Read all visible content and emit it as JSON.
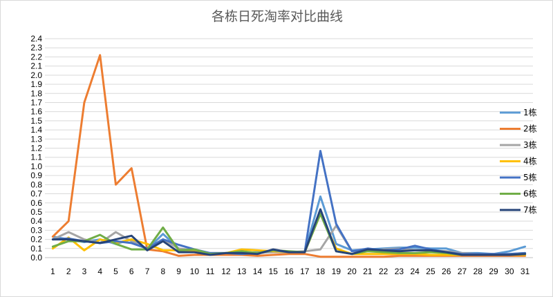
{
  "chart_data": {
    "type": "line",
    "title": "各栋日死淘率对比曲线",
    "xlabel": "",
    "ylabel": "",
    "x": [
      1,
      2,
      3,
      4,
      5,
      6,
      7,
      8,
      9,
      10,
      11,
      12,
      13,
      14,
      15,
      16,
      17,
      18,
      19,
      20,
      21,
      22,
      23,
      24,
      25,
      26,
      27,
      28,
      29,
      30,
      31
    ],
    "ylim": [
      0,
      2.4
    ],
    "yticks": [
      "0.0",
      "0.1",
      "0.2",
      "0.3",
      "0.4",
      "0.5",
      "0.6",
      "0.7",
      "0.8",
      "0.9",
      "1.0",
      "1.1",
      "1.2",
      "1.3",
      "1.4",
      "1.5",
      "1.6",
      "1.7",
      "1.8",
      "1.9",
      "2.0",
      "2.1",
      "2.2",
      "2.3",
      "2.4"
    ],
    "grid": "horizontal",
    "legend_position": "right",
    "series": [
      {
        "name": "1栋",
        "color": "#5B9BD5",
        "values": [
          0.23,
          0.2,
          0.17,
          0.2,
          0.15,
          0.2,
          0.09,
          0.26,
          0.1,
          0.06,
          0.04,
          0.05,
          0.05,
          0.06,
          0.07,
          0.06,
          0.06,
          0.67,
          0.15,
          0.08,
          0.09,
          0.1,
          0.11,
          0.11,
          0.1,
          0.1,
          0.05,
          0.05,
          0.04,
          0.07,
          0.12
        ]
      },
      {
        "name": "2栋",
        "color": "#ED7D31",
        "values": [
          0.23,
          0.4,
          1.7,
          2.22,
          0.8,
          0.98,
          0.09,
          0.07,
          0.02,
          0.03,
          0.03,
          0.03,
          0.03,
          0.02,
          0.03,
          0.04,
          0.04,
          0.01,
          0.01,
          0.01,
          0.01,
          0.01,
          0.02,
          0.02,
          0.02,
          0.02,
          0.02,
          0.02,
          0.02,
          0.02,
          0.02
        ]
      },
      {
        "name": "3栋",
        "color": "#A5A5A5",
        "values": [
          0.2,
          0.28,
          0.2,
          0.16,
          0.28,
          0.18,
          0.1,
          0.2,
          0.1,
          0.08,
          0.05,
          0.05,
          0.06,
          0.05,
          0.06,
          0.06,
          0.07,
          0.09,
          0.35,
          0.07,
          0.07,
          0.09,
          0.1,
          0.08,
          0.08,
          0.07,
          0.05,
          0.04,
          0.04,
          0.04,
          0.05
        ]
      },
      {
        "name": "4栋",
        "color": "#FFC000",
        "values": [
          0.1,
          0.22,
          0.08,
          0.2,
          0.16,
          0.2,
          0.15,
          0.08,
          0.08,
          0.08,
          0.04,
          0.05,
          0.09,
          0.08,
          0.07,
          0.06,
          0.06,
          0.48,
          0.1,
          0.04,
          0.04,
          0.04,
          0.04,
          0.04,
          0.03,
          0.03,
          0.03,
          0.03,
          0.03,
          0.03,
          0.03
        ]
      },
      {
        "name": "5栋",
        "color": "#4472C4",
        "values": [
          0.2,
          0.21,
          0.18,
          0.16,
          0.18,
          0.16,
          0.1,
          0.2,
          0.14,
          0.09,
          0.05,
          0.05,
          0.04,
          0.05,
          0.08,
          0.06,
          0.06,
          1.17,
          0.37,
          0.07,
          0.1,
          0.08,
          0.09,
          0.13,
          0.09,
          0.06,
          0.04,
          0.04,
          0.04,
          0.04,
          0.05
        ]
      },
      {
        "name": "6栋",
        "color": "#70AD47",
        "values": [
          0.12,
          0.18,
          0.18,
          0.25,
          0.15,
          0.09,
          0.09,
          0.33,
          0.08,
          0.09,
          0.04,
          0.05,
          0.07,
          0.05,
          0.08,
          0.07,
          0.06,
          0.48,
          0.07,
          0.04,
          0.07,
          0.06,
          0.05,
          0.05,
          0.06,
          0.05,
          0.03,
          0.03,
          0.03,
          0.03,
          0.04
        ]
      },
      {
        "name": "7栋",
        "color": "#264478",
        "values": [
          0.2,
          0.2,
          0.18,
          0.16,
          0.2,
          0.24,
          0.08,
          0.18,
          0.06,
          0.06,
          0.03,
          0.05,
          0.05,
          0.04,
          0.09,
          0.06,
          0.06,
          0.53,
          0.07,
          0.04,
          0.09,
          0.08,
          0.07,
          0.08,
          0.08,
          0.06,
          0.03,
          0.03,
          0.03,
          0.03,
          0.04
        ]
      }
    ]
  }
}
